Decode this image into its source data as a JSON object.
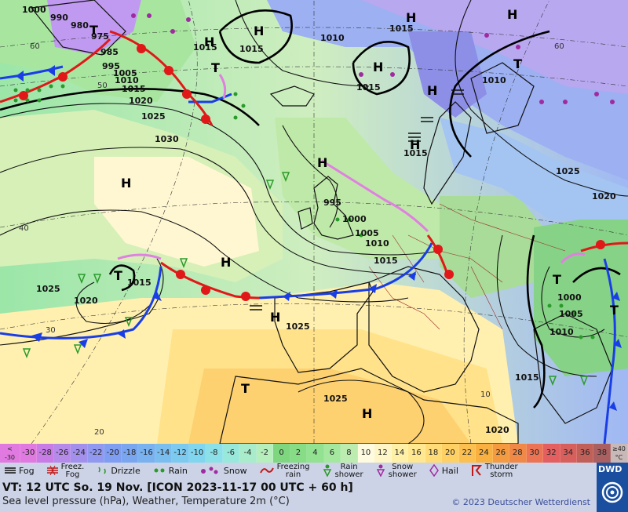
{
  "map": {
    "pressure_labels": [
      "1000",
      "990",
      "980",
      "975",
      "985",
      "995",
      "1005",
      "1010",
      "1015",
      "1020",
      "1025",
      "1030",
      "995",
      "1000",
      "1005",
      "1010",
      "1015",
      "1025",
      "1020",
      "1015",
      "1025",
      "1010",
      "1015",
      "1015",
      "1025",
      "1020",
      "1000",
      "1005",
      "1010",
      "1015",
      "1025",
      "1020",
      "1015",
      "1015",
      "1015",
      "1010"
    ],
    "pressure_centers": [
      "H",
      "H",
      "H",
      "H",
      "H",
      "H",
      "H",
      "H",
      "H",
      "H",
      "H",
      "H",
      "T",
      "T",
      "T",
      "T",
      "T",
      "T",
      "T"
    ],
    "temperature_labels": [
      "60",
      "50",
      "40",
      "30",
      "20",
      "60",
      "10"
    ],
    "center_labels": {
      "high": "H",
      "low": "T"
    }
  },
  "scale": {
    "first": [
      "<",
      "-30"
    ],
    "values": [
      "-30",
      "-28",
      "-26",
      "-24",
      "-22",
      "-20",
      "-18",
      "-16",
      "-14",
      "-12",
      "-10",
      "-8",
      "-6",
      "-4",
      "-2",
      "0",
      "2",
      "4",
      "6",
      "8",
      "10",
      "12",
      "14",
      "16",
      "18",
      "20",
      "22",
      "24",
      "26",
      "28",
      "30",
      "32",
      "34",
      "36",
      "38"
    ],
    "last": [
      "≥40",
      "°C"
    ],
    "colors": [
      "#e07ae0",
      "#c77ce6",
      "#b58ae8",
      "#a390ec",
      "#9198f0",
      "#7f9ef2",
      "#7aa6f0",
      "#7ab2f0",
      "#7abef0",
      "#7ccaf0",
      "#80d6ee",
      "#8ce0e8",
      "#98e8dc",
      "#a8eccc",
      "#b6eebc",
      "#7ed77e",
      "#86dd86",
      "#92e292",
      "#a4e8a0",
      "#bcecb0",
      "#fffbe0",
      "#fff6c8",
      "#fff0a8",
      "#ffe890",
      "#ffdc78",
      "#ffd064",
      "#fcc050",
      "#f8b040",
      "#f49a40",
      "#f08848",
      "#ec7454",
      "#e46060",
      "#d8605c",
      "#c06058",
      "#aa6060"
    ]
  },
  "legend": {
    "fog": "Fog",
    "freezing_fog": [
      "Freez.",
      "Fog"
    ],
    "drizzle": "Drizzle",
    "rain": "Rain",
    "snow": "Snow",
    "freezing_rain": [
      "Freezing",
      "rain"
    ],
    "rain_shower": [
      "Rain",
      "shower"
    ],
    "snow_shower": [
      "Snow",
      "shower"
    ],
    "hail": "Hail",
    "thunderstorm": [
      "Thunder",
      "storm"
    ]
  },
  "footer": {
    "valid_time": "VT: 12 UTC So.  19 Nov. [ICON 2023-11-17  00 UTC + 60 h]",
    "subtitle": "Sea level pressure (hPa), Weather, Temperature 2m (°C)",
    "copyright": "© 2023 Deutscher Wetterdienst"
  },
  "logo": {
    "text": "DWD"
  }
}
